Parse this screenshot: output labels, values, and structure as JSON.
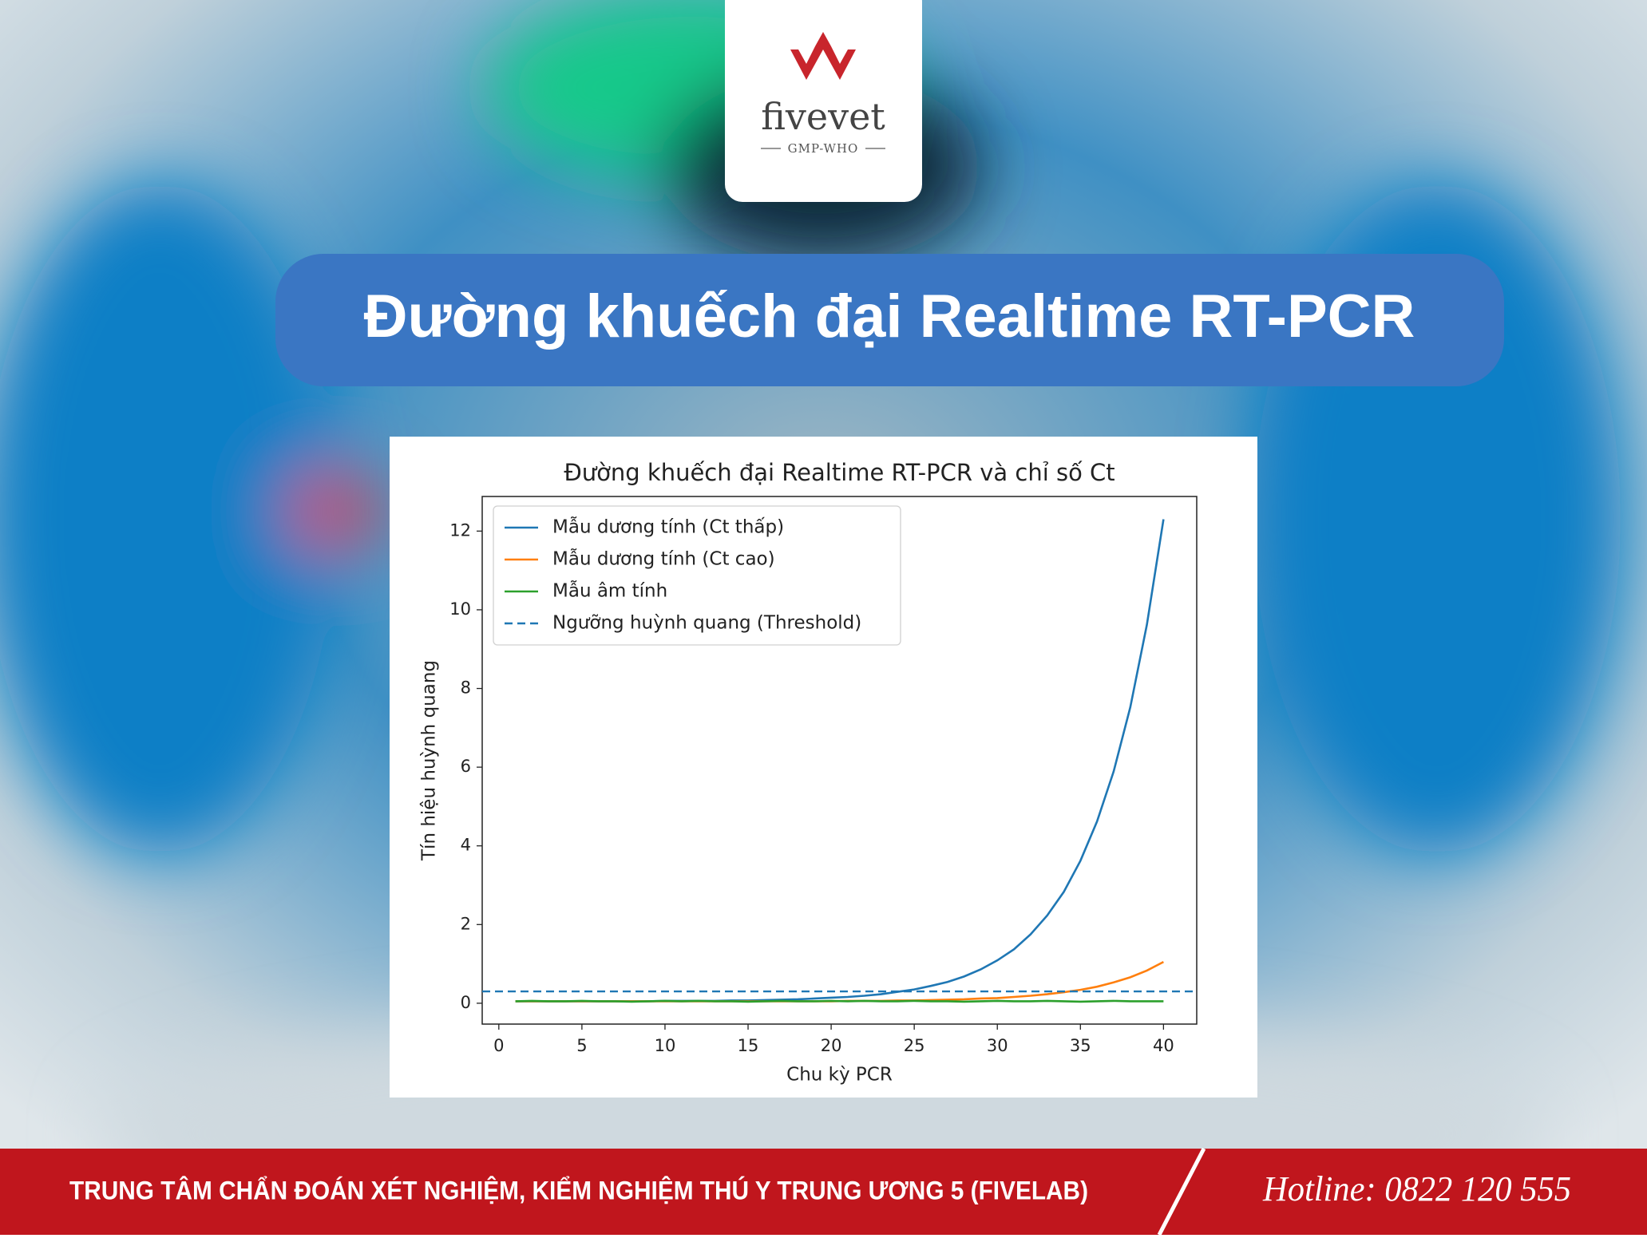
{
  "header": {
    "logo_name": "fivevet",
    "logo_sub": "GMP-WHO",
    "title": "Đường khuếch đại Realtime RT-PCR"
  },
  "chart_data": {
    "type": "line",
    "title": "Đường khuếch đại Realtime RT-PCR và chỉ số Ct",
    "x_label": "Chu kỳ PCR",
    "y_label": "Tín hiệu huỳnh quang",
    "x": [
      1,
      2,
      3,
      4,
      5,
      6,
      7,
      8,
      9,
      10,
      11,
      12,
      13,
      14,
      15,
      16,
      17,
      18,
      19,
      20,
      21,
      22,
      23,
      24,
      25,
      26,
      27,
      28,
      29,
      30,
      31,
      32,
      33,
      34,
      35,
      36,
      37,
      38,
      39,
      40
    ],
    "series": [
      {
        "name": "Mẫu dương tính (Ct thấp)",
        "color": "#1f77b4",
        "values": [
          0.05,
          0.05,
          0.05,
          0.05,
          0.05,
          0.05,
          0.05,
          0.05,
          0.05,
          0.06,
          0.06,
          0.06,
          0.06,
          0.07,
          0.07,
          0.08,
          0.09,
          0.1,
          0.12,
          0.14,
          0.16,
          0.19,
          0.23,
          0.29,
          0.35,
          0.44,
          0.54,
          0.68,
          0.86,
          1.09,
          1.37,
          1.75,
          2.23,
          2.83,
          3.62,
          4.62,
          5.89,
          7.52,
          9.62,
          12.3
        ]
      },
      {
        "name": "Mẫu dương tính (Ct cao)",
        "color": "#ff7f0e",
        "values": [
          0.05,
          0.05,
          0.05,
          0.05,
          0.05,
          0.05,
          0.05,
          0.05,
          0.05,
          0.05,
          0.05,
          0.05,
          0.05,
          0.05,
          0.05,
          0.05,
          0.05,
          0.05,
          0.05,
          0.05,
          0.06,
          0.06,
          0.06,
          0.07,
          0.07,
          0.08,
          0.09,
          0.1,
          0.12,
          0.13,
          0.16,
          0.19,
          0.23,
          0.28,
          0.34,
          0.42,
          0.53,
          0.66,
          0.83,
          1.05
        ]
      },
      {
        "name": "Mẫu âm tính",
        "color": "#2ca02c",
        "values": [
          0.05,
          0.06,
          0.05,
          0.05,
          0.06,
          0.05,
          0.05,
          0.04,
          0.05,
          0.06,
          0.05,
          0.06,
          0.05,
          0.05,
          0.04,
          0.05,
          0.06,
          0.05,
          0.05,
          0.06,
          0.05,
          0.06,
          0.05,
          0.05,
          0.06,
          0.05,
          0.05,
          0.04,
          0.05,
          0.06,
          0.05,
          0.05,
          0.06,
          0.05,
          0.04,
          0.05,
          0.06,
          0.05,
          0.05,
          0.05
        ]
      }
    ],
    "hlines": [
      {
        "name": "Ngưỡng huỳnh quang (Threshold)",
        "value": 0.3,
        "color": "#1f77b4",
        "style": "dashed"
      }
    ],
    "xlim": [
      -1,
      42
    ],
    "ylim": [
      -0.53,
      12.88
    ],
    "xticks": [
      0,
      5,
      10,
      15,
      20,
      25,
      30,
      35,
      40
    ],
    "yticks": [
      0,
      2,
      4,
      6,
      8,
      10,
      12
    ],
    "legend": "upper-left",
    "grid": false
  },
  "footer": {
    "organization": "TRUNG TÂM CHẨN ĐOÁN XÉT NGHIỆM, KIỂM NGHIỆM THÚ Y TRUNG ƯƠNG 5 (FIVELAB)",
    "hotline": "Hotline: 0822 120 555"
  }
}
